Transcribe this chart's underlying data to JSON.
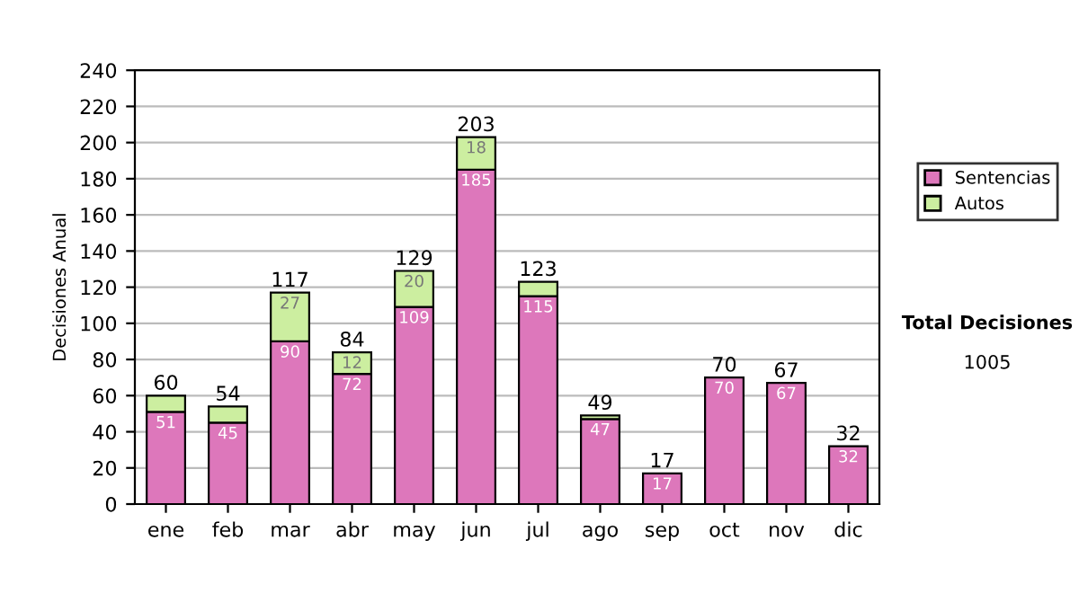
{
  "chart_data": {
    "type": "bar",
    "stacked": true,
    "ylabel": "Decisiones Anual",
    "categories": [
      "ene",
      "feb",
      "mar",
      "abr",
      "may",
      "jun",
      "jul",
      "ago",
      "sep",
      "oct",
      "nov",
      "dic"
    ],
    "series": [
      {
        "name": "Sentencias",
        "color": "#dd77bb",
        "values": [
          51,
          45,
          90,
          72,
          109,
          185,
          115,
          47,
          17,
          70,
          67,
          32
        ],
        "value_labels": [
          "51",
          "45",
          "90",
          "72",
          "109",
          "185",
          "115",
          "47",
          "17",
          "70",
          "67",
          "32"
        ]
      },
      {
        "name": "Autos",
        "color": "#cceea0",
        "values": [
          9,
          9,
          27,
          12,
          20,
          18,
          8,
          2,
          null,
          null,
          null,
          null
        ],
        "value_labels": [
          null,
          null,
          "27",
          "12",
          "20",
          "18",
          null,
          null,
          null,
          null,
          null,
          null
        ]
      }
    ],
    "totals": [
      "60",
      "54",
      "117",
      "84",
      "129",
      "203",
      "123",
      "49",
      "17",
      "70",
      "67",
      "32"
    ],
    "ylim": [
      0,
      240
    ],
    "yticks": [
      0,
      20,
      40,
      60,
      80,
      100,
      120,
      140,
      160,
      180,
      200,
      220,
      240
    ],
    "grid": "y",
    "legend": "right",
    "annotations": [
      "Total Decisiones",
      "1005"
    ]
  }
}
